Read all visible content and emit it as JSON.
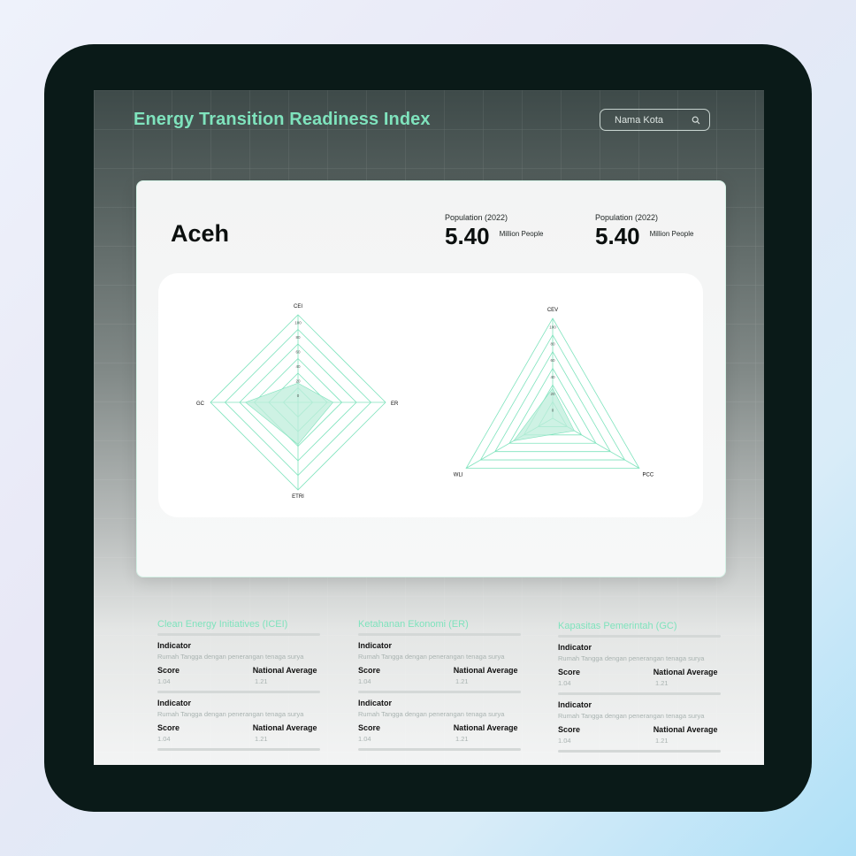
{
  "app": {
    "title": "Energy Transition Readiness Index"
  },
  "search": {
    "placeholder": "Nama Kota"
  },
  "region": {
    "name": "Aceh",
    "stats": [
      {
        "label": "Population (2022)",
        "value": "5.40",
        "unit": "Million People"
      },
      {
        "label": "Population (2022)",
        "value": "5.40",
        "unit": "Million People"
      }
    ]
  },
  "chart_data": [
    {
      "type": "radar",
      "axes": [
        "CEI",
        "ER",
        "ETRI",
        "GC"
      ],
      "ticks": [
        "0",
        "20",
        "40",
        "60",
        "80",
        "100"
      ],
      "range": [
        0,
        100
      ],
      "values": [
        22,
        40,
        48,
        60
      ],
      "colors": {
        "grid": "#7fe3bd",
        "fill": "#bdeedb"
      }
    },
    {
      "type": "radar",
      "axes": [
        "CEV",
        "PCC",
        "WLI"
      ],
      "ticks": [
        "0",
        "20",
        "40",
        "60",
        "80",
        "100"
      ],
      "range": [
        0,
        100
      ],
      "values": [
        30,
        25,
        45
      ],
      "colors": {
        "grid": "#7fe3bd",
        "fill": "#bdeedb"
      }
    }
  ],
  "indicator_cards": [
    {
      "title": "Clean Energy Initiatives (ICEI)",
      "items": [
        {
          "label": "Indicator",
          "desc": "Rumah Tangga dengan penerangan tenaga surya",
          "score_label": "Score",
          "avg_label": "National Average",
          "score": "1.04",
          "avg": "1.21"
        },
        {
          "label": "Indicator",
          "desc": "Rumah Tangga dengan penerangan tenaga surya",
          "score_label": "Score",
          "avg_label": "National Average",
          "score": "1.04",
          "avg": "1.21"
        }
      ]
    },
    {
      "title": "Ketahanan Ekonomi (ER)",
      "items": [
        {
          "label": "Indicator",
          "desc": "Rumah Tangga dengan penerangan tenaga surya",
          "score_label": "Score",
          "avg_label": "National Average",
          "score": "1.04",
          "avg": "1.21"
        },
        {
          "label": "Indicator",
          "desc": "Rumah Tangga dengan penerangan tenaga surya",
          "score_label": "Score",
          "avg_label": "National Average",
          "score": "1.04",
          "avg": "1.21"
        }
      ]
    },
    {
      "title": "Kapasitas Pemerintah (GC)",
      "items": [
        {
          "label": "Indicator",
          "desc": "Rumah Tangga dengan penerangan tenaga surya",
          "score_label": "Score",
          "avg_label": "National Average",
          "score": "1.04",
          "avg": "1.21"
        },
        {
          "label": "Indicator",
          "desc": "Rumah Tangga dengan penerangan tenaga surya",
          "score_label": "Score",
          "avg_label": "National Average",
          "score": "1.04",
          "avg": "1.21"
        }
      ]
    }
  ]
}
